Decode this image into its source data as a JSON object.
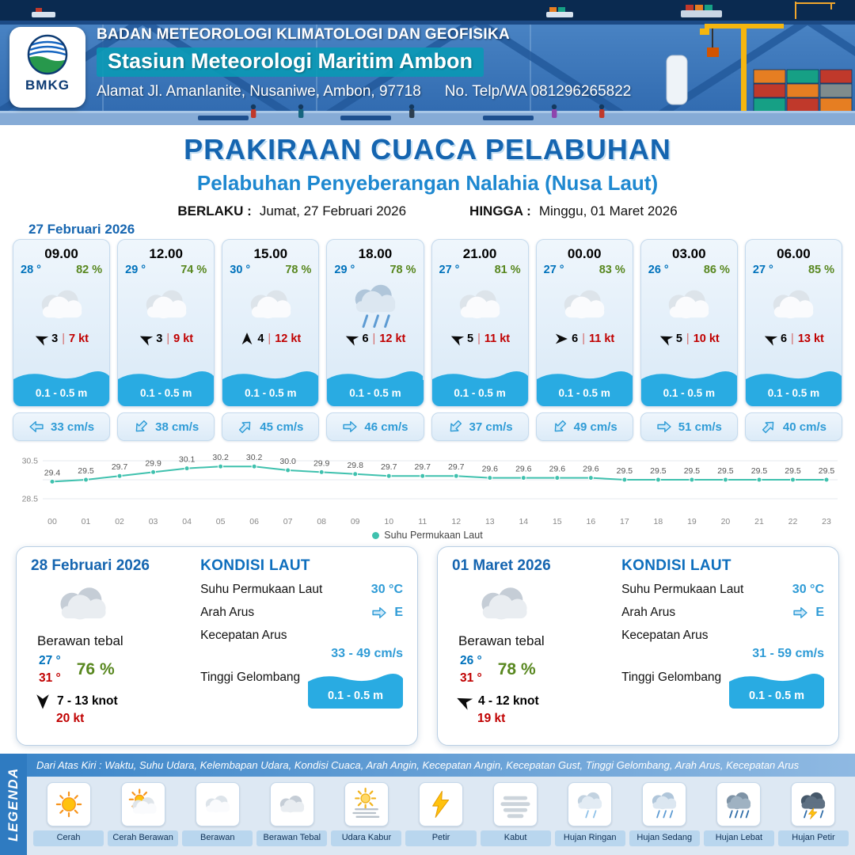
{
  "header": {
    "logo_text": "BMKG",
    "agency": "BADAN METEOROLOGI KLIMATOLOGI DAN GEOFISIKA",
    "station": "Stasiun Meteorologi Maritim Ambon",
    "address": "Alamat Jl. Amanlanite, Nusaniwe, Ambon, 97718",
    "phone": "No. Telp/WA  081296265822"
  },
  "title": {
    "main": "PRAKIRAAN CUACA PELABUHAN",
    "subtitle": "Pelabuhan Penyeberangan Nalahia (Nusa Laut)",
    "berlaku_label": "BERLAKU :",
    "berlaku_value": "Jumat, 27 Februari 2026",
    "hingga_label": "HINGGA :",
    "hingga_value": "Minggu, 01 Maret 2026",
    "forecast_date": "27 Februari 2026"
  },
  "ui": {
    "separator": "|"
  },
  "forecast_cards": [
    {
      "time": "09.00",
      "temp": "28 °",
      "humidity": "82 %",
      "icon": "berawan",
      "wind_deg": 205,
      "wind_val": "3",
      "gust": "7 kt",
      "wave": "0.1 - 0.5 m",
      "current_deg": 180,
      "current": "33 cm/s"
    },
    {
      "time": "12.00",
      "temp": "29 °",
      "humidity": "74 %",
      "icon": "berawan",
      "wind_deg": 205,
      "wind_val": "3",
      "gust": "9 kt",
      "wave": "0.1 - 0.5 m",
      "current_deg": 135,
      "current": "38 cm/s"
    },
    {
      "time": "15.00",
      "temp": "30 °",
      "humidity": "78 %",
      "icon": "berawan",
      "wind_deg": 270,
      "wind_val": "4",
      "gust": "12 kt",
      "wave": "0.1 - 0.5 m",
      "current_deg": -45,
      "current": "45 cm/s"
    },
    {
      "time": "18.00",
      "temp": "29 °",
      "humidity": "78 %",
      "icon": "hujan-sedang",
      "wind_deg": 205,
      "wind_val": "6",
      "gust": "12 kt",
      "wave": "0.1 - 0.5 m",
      "current_deg": 0,
      "current": "46 cm/s"
    },
    {
      "time": "21.00",
      "temp": "27 °",
      "humidity": "81 %",
      "icon": "berawan",
      "wind_deg": 205,
      "wind_val": "5",
      "gust": "11 kt",
      "wave": "0.1 - 0.5 m",
      "current_deg": 135,
      "current": "37 cm/s"
    },
    {
      "time": "00.00",
      "temp": "27 °",
      "humidity": "83 %",
      "icon": "berawan",
      "wind_deg": 0,
      "wind_val": "6",
      "gust": "11 kt",
      "wave": "0.1 - 0.5 m",
      "current_deg": 135,
      "current": "49 cm/s"
    },
    {
      "time": "03.00",
      "temp": "26 °",
      "humidity": "86 %",
      "icon": "berawan",
      "wind_deg": 205,
      "wind_val": "5",
      "gust": "10 kt",
      "wave": "0.1 - 0.5 m",
      "current_deg": 0,
      "current": "51 cm/s"
    },
    {
      "time": "06.00",
      "temp": "27 °",
      "humidity": "85 %",
      "icon": "berawan",
      "wind_deg": 205,
      "wind_val": "6",
      "gust": "13 kt",
      "wave": "0.1 - 0.5 m",
      "current_deg": -45,
      "current": "40 cm/s"
    }
  ],
  "chart_data": {
    "type": "line",
    "series_name": "Suhu Permukaan Laut",
    "x": [
      "00",
      "01",
      "02",
      "03",
      "04",
      "05",
      "06",
      "07",
      "08",
      "09",
      "10",
      "11",
      "12",
      "13",
      "14",
      "15",
      "16",
      "17",
      "18",
      "19",
      "20",
      "21",
      "22",
      "23"
    ],
    "values": [
      29.4,
      29.5,
      29.7,
      29.9,
      30.1,
      30.2,
      30.2,
      30.0,
      29.9,
      29.8,
      29.7,
      29.7,
      29.7,
      29.6,
      29.6,
      29.6,
      29.6,
      29.5,
      29.5,
      29.5,
      29.5,
      29.5,
      29.5,
      29.5
    ],
    "ylim": [
      28.5,
      30.5
    ],
    "yticks": [
      "30.5",
      "28.5"
    ],
    "line_color": "#3fc1ae",
    "grid": true,
    "legend_position": "bottom"
  },
  "daily_labels": {
    "sea_title": "KONDISI LAUT",
    "sst": "Suhu Permukaan Laut",
    "arah": "Arah Arus",
    "kecepatan": "Kecepatan Arus",
    "gelombang": "Tinggi Gelombang"
  },
  "daily": [
    {
      "date": "28 Februari 2026",
      "icon": "berawan-tebal",
      "condition": "Berawan tebal",
      "temp_min": "27 °",
      "temp_max": "31 °",
      "humidity": "76 %",
      "wind_deg": 90,
      "wind_range": "7 - 13 knot",
      "gust": "20 kt",
      "sst": "30 °C",
      "current_dir": "E",
      "current_deg": 0,
      "current_speed": "33 - 49 cm/s",
      "wave": "0.1 - 0.5 m"
    },
    {
      "date": "01 Maret 2026",
      "icon": "berawan-tebal",
      "condition": "Berawan tebal",
      "temp_min": "26 °",
      "temp_max": "31 °",
      "humidity": "78 %",
      "wind_deg": 205,
      "wind_range": "4 - 12 knot",
      "gust": "19 kt",
      "sst": "30 °C",
      "current_dir": "E",
      "current_deg": 0,
      "current_speed": "31 - 59 cm/s",
      "wave": "0.1 - 0.5 m"
    }
  ],
  "legend": {
    "title": "LEGENDA",
    "note": "Dari Atas Kiri : Waktu, Suhu Udara, Kelembapan Udara, Kondisi Cuaca, Arah Angin, Kecepatan Angin, Kecepatan Gust, Tinggi Gelombang, Arah Arus, Kecepatan Arus",
    "items": [
      {
        "label": "Cerah",
        "icon": "cerah"
      },
      {
        "label": "Cerah Berawan",
        "icon": "cerah-berawan"
      },
      {
        "label": "Berawan",
        "icon": "berawan"
      },
      {
        "label": "Berawan Tebal",
        "icon": "berawan-tebal"
      },
      {
        "label": "Udara Kabur",
        "icon": "udara-kabur"
      },
      {
        "label": "Petir",
        "icon": "petir"
      },
      {
        "label": "Kabut",
        "icon": "kabut"
      },
      {
        "label": "Hujan Ringan",
        "icon": "hujan-ringan"
      },
      {
        "label": "Hujan Sedang",
        "icon": "hujan-sedang"
      },
      {
        "label": "Hujan Lebat",
        "icon": "hujan-lebat"
      },
      {
        "label": "Hujan Petir",
        "icon": "hujan-petir"
      }
    ]
  },
  "colors": {
    "title_blue": "#1565b0",
    "subtitle_blue": "#1e88d0",
    "temp_blue": "#0072bc",
    "humidity_green": "#58871f",
    "gust_red": "#c00000",
    "wave_blue": "#29abe2",
    "current_blue": "#2e9bd6",
    "sst_line_teal": "#3fc1ae"
  }
}
